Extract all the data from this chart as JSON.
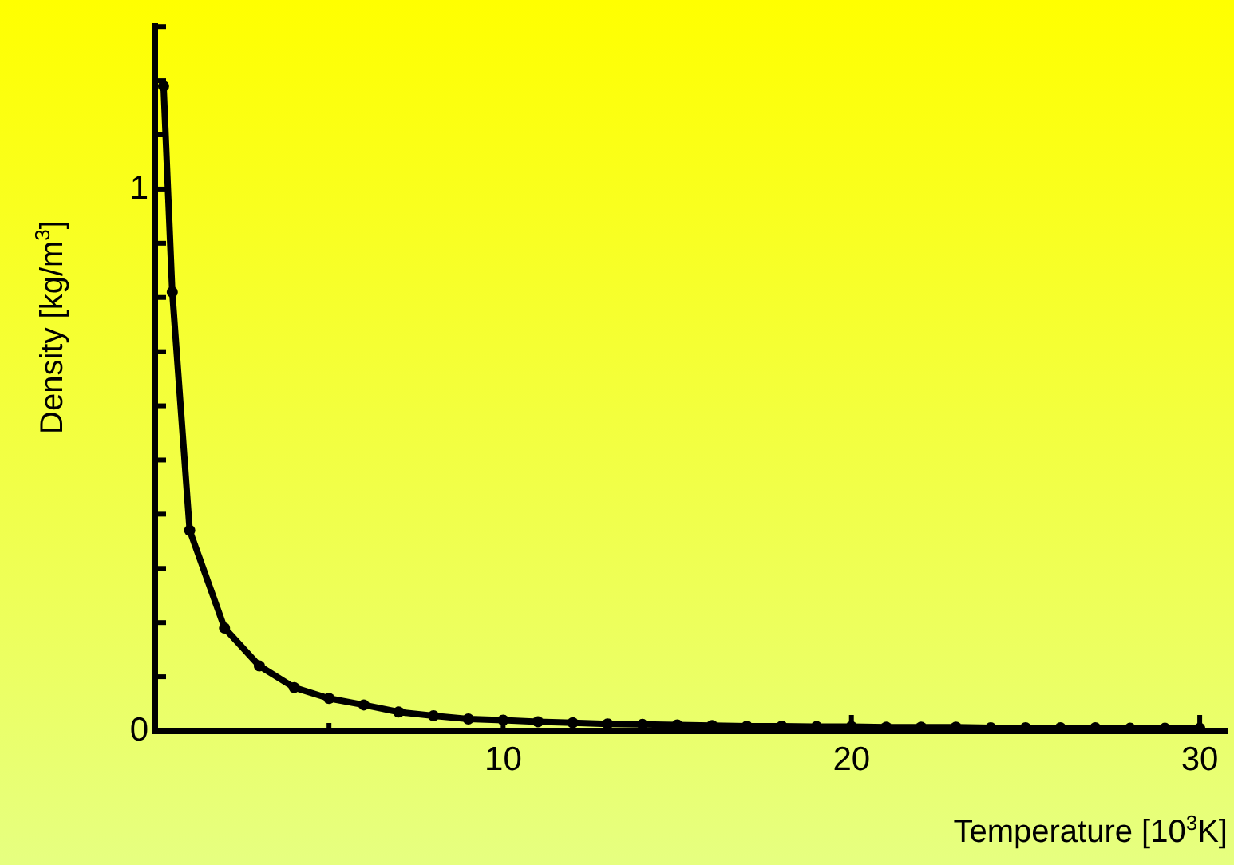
{
  "chart_data": {
    "type": "line",
    "xlabel": "Temperature [10$^{3}$K]",
    "ylabel": "Density [kg/m$^{3}$]",
    "x": [
      0.25,
      0.5,
      1,
      2,
      3,
      4,
      5,
      6,
      7,
      8,
      9,
      10,
      11,
      12,
      13,
      14,
      15,
      16,
      17,
      18,
      19,
      20,
      21,
      22,
      23,
      24,
      25,
      26,
      27,
      28,
      29,
      30
    ],
    "series": [
      {
        "color": "#000000",
        "values": [
          1.19,
          0.81,
          0.37,
          0.19,
          0.12,
          0.08,
          0.06,
          0.048,
          0.035,
          0.028,
          0.022,
          0.02,
          0.017,
          0.015,
          0.013,
          0.012,
          0.011,
          0.01,
          0.009,
          0.009,
          0.008,
          0.008,
          0.007,
          0.007,
          0.007,
          0.006,
          0.006,
          0.006,
          0.006,
          0.005,
          0.005,
          0.005
        ]
      }
    ],
    "xlim": [
      0,
      30.8
    ],
    "ylim": [
      0,
      1.3
    ],
    "xticks": [
      {
        "value": 0,
        "label": null
      },
      {
        "value": 5,
        "label": null
      },
      10,
      {
        "value": 15,
        "label": null
      },
      20,
      {
        "value": 25,
        "label": null
      },
      30
    ],
    "yticks": [
      0,
      {
        "value": 0.1,
        "label": null
      },
      {
        "value": 0.2,
        "label": null
      },
      {
        "value": 0.3,
        "label": null
      },
      {
        "value": 0.4,
        "label": null
      },
      {
        "value": 0.5,
        "label": null
      },
      {
        "value": 0.6,
        "label": null
      },
      {
        "value": 0.7,
        "label": null
      },
      {
        "value": 0.8,
        "label": null
      },
      {
        "value": 0.9,
        "label": null
      },
      1,
      {
        "value": 1.1,
        "label": null
      },
      {
        "value": 1.2,
        "label": null
      },
      {
        "value": 1.3,
        "label": null
      }
    ],
    "grid": false,
    "legend": false,
    "marker": "circle",
    "line_style": "solid"
  }
}
